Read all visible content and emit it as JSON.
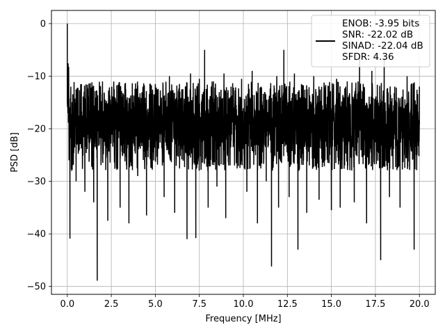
{
  "chart_data": {
    "type": "line",
    "title": "",
    "xlabel": "Frequency [MHz]",
    "ylabel": "PSD [dB]",
    "xlim": [
      -0.9,
      20.9
    ],
    "ylim": [
      -51.5,
      2.5
    ],
    "xticks": [
      0.0,
      2.5,
      5.0,
      7.5,
      10.0,
      12.5,
      15.0,
      17.5,
      20.0
    ],
    "xtick_labels": [
      "0.0",
      "2.5",
      "5.0",
      "7.5",
      "10.0",
      "12.5",
      "15.0",
      "17.5",
      "20.0"
    ],
    "yticks": [
      0,
      -10,
      -20,
      -30,
      -40,
      -50
    ],
    "ytick_labels": [
      "0",
      "−10",
      "−20",
      "−30",
      "−40",
      "−50"
    ],
    "grid": true,
    "legend_position": "top-right",
    "legend_entries": [
      "ENOB: -3.95 bits",
      "SNR: -22.02 dB",
      "SINAD: -22.04 dB",
      "SFDR: 4.36"
    ],
    "series": [
      {
        "color": "#000000",
        "x": [
          0.0,
          0.05,
          0.1,
          0.15,
          0.2,
          0.25,
          0.3,
          0.5,
          0.8,
          1.0,
          1.2,
          1.5,
          1.7,
          2.0,
          2.3,
          2.7,
          3.0,
          3.3,
          3.5,
          3.7,
          4.0,
          4.3,
          4.5,
          5.0,
          5.5,
          5.8,
          6.1,
          6.5,
          6.8,
          7.0,
          7.3,
          7.5,
          7.8,
          8.0,
          8.3,
          8.5,
          8.9,
          9.0,
          9.3,
          9.5,
          9.9,
          10.2,
          10.5,
          10.8,
          11.0,
          11.3,
          11.6,
          11.9,
          12.0,
          12.3,
          12.6,
          12.9,
          13.1,
          13.3,
          13.6,
          14.0,
          14.3,
          14.6,
          15.0,
          15.3,
          15.5,
          15.9,
          16.3,
          16.6,
          17.0,
          17.3,
          17.8,
          18.0,
          18.3,
          18.6,
          18.9,
          19.3,
          19.7,
          20.0
        ],
        "y": [
          0.0,
          -14.0,
          -26.0,
          -40.9,
          -12.0,
          -28.0,
          -18.0,
          -30.0,
          -11.5,
          -32.0,
          -17.0,
          -34.0,
          -48.9,
          -11.0,
          -37.5,
          -14.0,
          -35.0,
          -13.0,
          -38.0,
          -15.0,
          -29.0,
          -12.0,
          -36.5,
          -11.5,
          -33.0,
          -10.0,
          -36.0,
          -12.5,
          -41.0,
          -9.5,
          -40.8,
          -10.5,
          -5.0,
          -35.0,
          -11.0,
          -31.0,
          -9.5,
          -37.0,
          -12.0,
          -27.0,
          -10.5,
          -32.0,
          -9.0,
          -38.0,
          -12.0,
          -30.0,
          -46.2,
          -10.0,
          -35.0,
          -5.0,
          -33.0,
          -9.5,
          -43.0,
          -11.5,
          -36.0,
          -10.0,
          -33.5,
          -12.0,
          -35.5,
          -10.5,
          -35.0,
          -11.0,
          -34.0,
          -6.0,
          -38.0,
          -9.0,
          -45.0,
          -6.5,
          -33.0,
          -12.0,
          -35.0,
          -10.0,
          -43.0,
          -12.0
        ],
        "density_band": {
          "lower_typical": -28,
          "upper_typical": -11,
          "mean": -19
        }
      }
    ]
  }
}
